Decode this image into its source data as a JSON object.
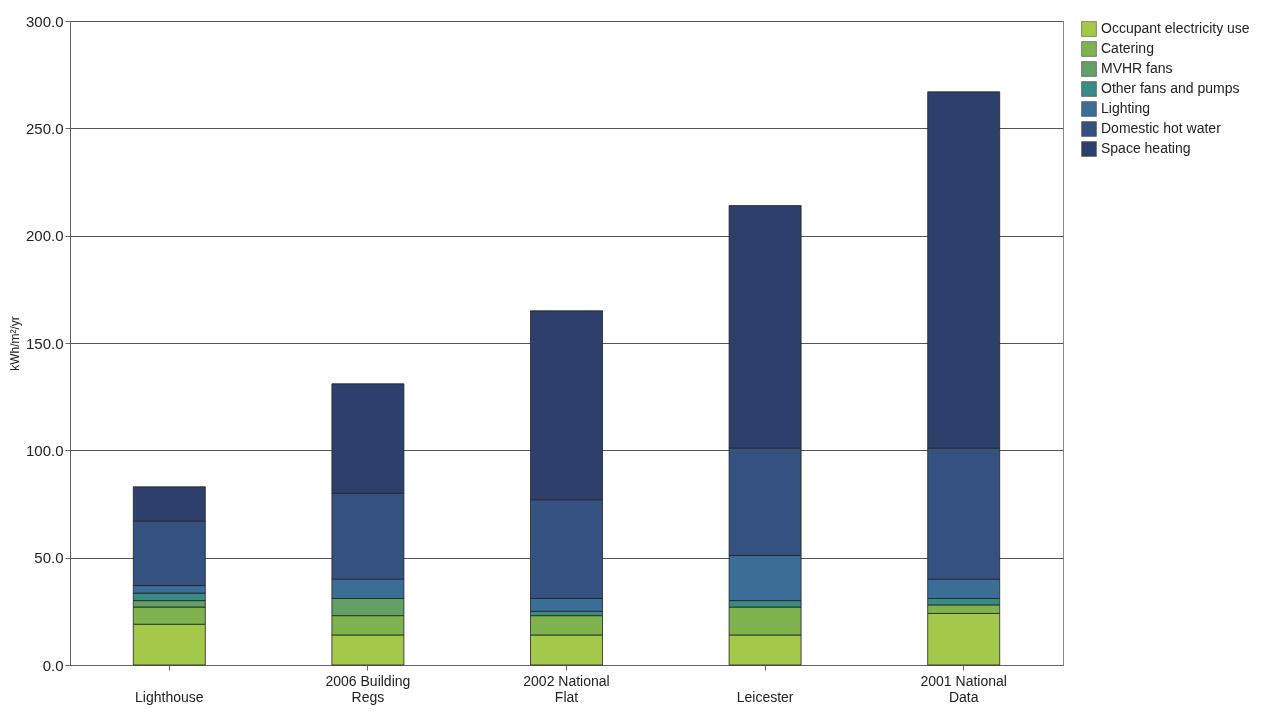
{
  "chart_data": {
    "type": "bar",
    "stacked": true,
    "ylabel": "kWh/m²/yr",
    "categories": [
      "Lighthouse",
      "2006 Building Regs",
      "2002 National Flat",
      "Leicester",
      "2001 National Data"
    ],
    "series": [
      {
        "name": "Occupant electricity use",
        "color": "#a4c94a",
        "values": [
          19,
          14,
          14,
          14,
          24
        ]
      },
      {
        "name": "Catering",
        "color": "#7fb34e",
        "values": [
          8,
          9,
          9,
          13,
          4
        ]
      },
      {
        "name": "MVHR fans",
        "color": "#63a065",
        "values": [
          3,
          8,
          null,
          null,
          null
        ]
      },
      {
        "name": "Other fans and pumps",
        "color": "#3a8a86",
        "values": [
          3.5,
          null,
          2,
          3,
          3
        ]
      },
      {
        "name": "Lighting",
        "color": "#3b6e96",
        "values": [
          3.5,
          9,
          6,
          21,
          9
        ]
      },
      {
        "name": "Domestic hot water",
        "color": "#35517f",
        "values": [
          30,
          40,
          46,
          50,
          61
        ]
      },
      {
        "name": "Space heating",
        "color": "#2e3f6b",
        "values": [
          16,
          51,
          88,
          113,
          166
        ]
      }
    ],
    "ylim": [
      0,
      300
    ],
    "yticks": [
      {
        "value": 0,
        "label": "0.0"
      },
      {
        "value": 50,
        "label": "50.0"
      },
      {
        "value": 100,
        "label": "100.0"
      },
      {
        "value": 150,
        "label": "150.0"
      },
      {
        "value": 200,
        "label": "200.0"
      },
      {
        "value": 250,
        "label": "250.0"
      },
      {
        "value": 300,
        "label": "300.0"
      }
    ],
    "grid": "y",
    "legend": "right"
  }
}
